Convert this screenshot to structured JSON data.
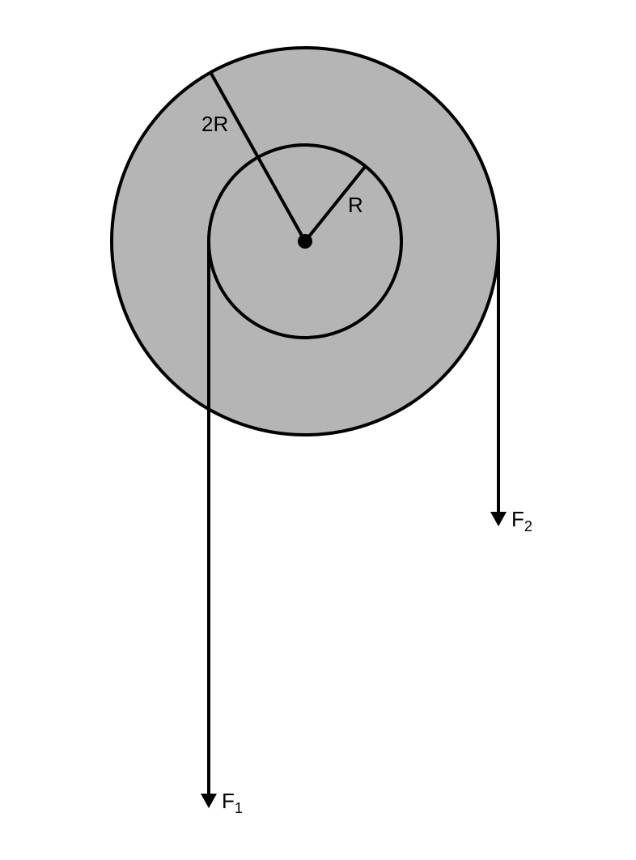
{
  "diagram": {
    "labels": {
      "outer_radius": "2R",
      "inner_radius": "R",
      "force1_letter": "F",
      "force1_subscript": "1",
      "force2_letter": "F",
      "force2_subscript": "2"
    },
    "colors": {
      "outer_fill": "#b5b5b5",
      "inner_fill": "#b5b5b5",
      "stroke": "#000000",
      "background": "#ffffff"
    }
  }
}
